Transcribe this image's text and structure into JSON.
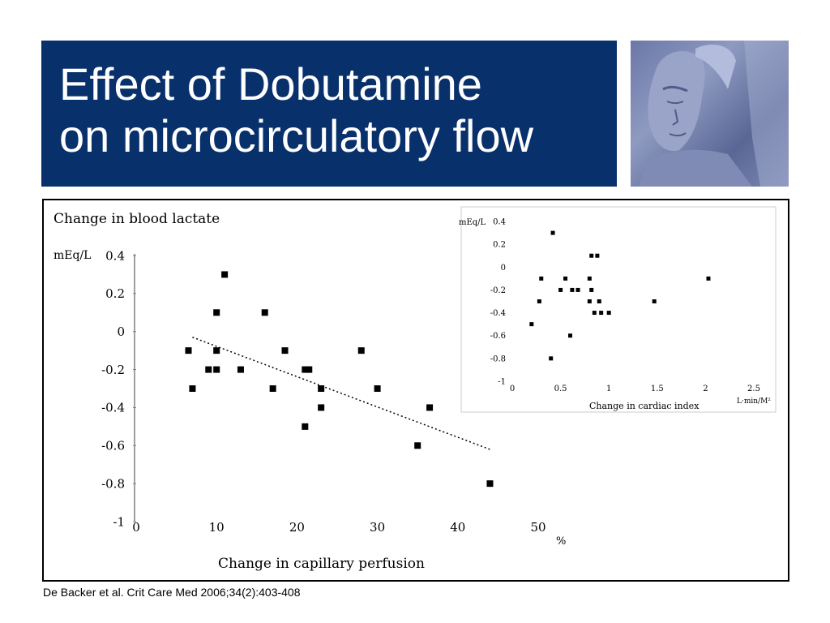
{
  "title": {
    "line1": "Effect of Dobutamine",
    "line2": "on microcirculatory flow"
  },
  "photo": {
    "icon": "bust-photo"
  },
  "citation": "De Backer et al. Crit Care Med 2006;34(2):403-408",
  "colors": {
    "title_band": "#08306b",
    "title_text": "#ffffff",
    "markers": "#000000"
  },
  "chart_data": [
    {
      "type": "scatter",
      "title": "Change in blood lactate",
      "ylabel": "mEq/L",
      "xlabel": "Change in capillary perfusion",
      "xunit": "%",
      "xlim": [
        0,
        50
      ],
      "ylim": [
        -1,
        0.4
      ],
      "xticks": [
        "0",
        "10",
        "20",
        "30",
        "40",
        "50"
      ],
      "yticks": [
        "0.4",
        "0.2",
        "0",
        "-0.2",
        "-0.4",
        "-0.6",
        "-0.8",
        "-1"
      ],
      "x": [
        6.5,
        7,
        9,
        10,
        10,
        10,
        11,
        13,
        16,
        17,
        18.5,
        21,
        21,
        21.5,
        23,
        23,
        28,
        30,
        35,
        36.5,
        44
      ],
      "y": [
        -0.1,
        -0.3,
        -0.2,
        0.1,
        -0.2,
        -0.1,
        0.3,
        -0.2,
        0.1,
        -0.3,
        -0.1,
        -0.2,
        -0.5,
        -0.2,
        -0.3,
        -0.4,
        -0.1,
        -0.3,
        -0.6,
        -0.4,
        -0.8
      ],
      "trendline": {
        "x": [
          7,
          44
        ],
        "y": [
          -0.03,
          -0.62
        ]
      },
      "grid": false
    },
    {
      "type": "scatter",
      "title": "",
      "ylabel": "mEq/L",
      "xlabel": "Change in cardiac index",
      "xunit": "L·min/M²",
      "xlim": [
        0,
        2.5
      ],
      "ylim": [
        -1,
        0.4
      ],
      "xticks": [
        "0",
        "0.5",
        "1",
        "1.5",
        "2",
        "2.5"
      ],
      "yticks": [
        "0.4",
        "0.2",
        "0",
        "-0.2",
        "-0.4",
        "-0.6",
        "-0.8",
        "-1"
      ],
      "x": [
        0.2,
        0.28,
        0.3,
        0.4,
        0.42,
        0.5,
        0.55,
        0.6,
        0.62,
        0.68,
        0.8,
        0.8,
        0.82,
        0.82,
        0.85,
        0.88,
        0.9,
        0.92,
        1.0,
        1.47,
        2.03
      ],
      "y": [
        -0.5,
        -0.3,
        -0.1,
        -0.8,
        0.3,
        -0.2,
        -0.1,
        -0.6,
        -0.2,
        -0.2,
        -0.3,
        -0.1,
        -0.2,
        0.1,
        -0.4,
        0.1,
        -0.3,
        -0.4,
        -0.4,
        -0.3,
        -0.1
      ],
      "grid": false
    }
  ]
}
